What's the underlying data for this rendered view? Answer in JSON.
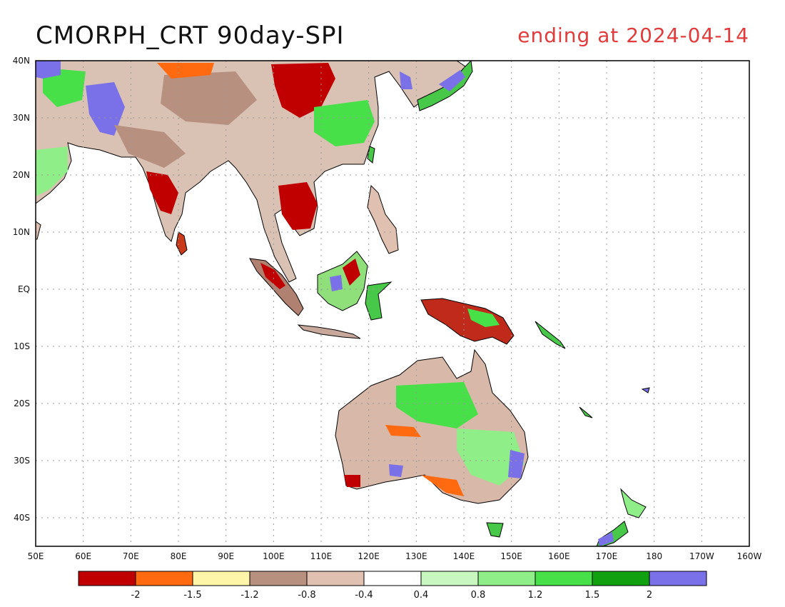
{
  "title": "CMORPH_CRT 90day-SPI",
  "subtitle": "ending at 2024-04-14",
  "colors": {
    "title": "#111111",
    "subtitle": "#e23b3b",
    "coast": "#000000",
    "grid": "#9a9a9a"
  },
  "map": {
    "lon_range": [
      50,
      200
    ],
    "lat_range": [
      -45,
      40
    ],
    "x_ticks": [
      "50E",
      "60E",
      "70E",
      "80E",
      "90E",
      "100E",
      "110E",
      "120E",
      "130E",
      "140E",
      "150E",
      "160E",
      "170E",
      "180",
      "170W",
      "160W"
    ],
    "y_ticks": [
      "40N",
      "30N",
      "20N",
      "10N",
      "EQ",
      "10S",
      "20S",
      "30S",
      "40S"
    ]
  },
  "colorbar": {
    "colors": [
      "#c00000",
      "#ff6a10",
      "#fff5a8",
      "#b89080",
      "#e0c0b0",
      "#ffffff",
      "#c8f8c0",
      "#90ee88",
      "#48e048",
      "#10a010",
      "#7a70e8"
    ],
    "labels": [
      "-2",
      "-1.5",
      "-1.2",
      "-0.8",
      "-0.4",
      "0.4",
      "0.8",
      "1.2",
      "1.5",
      "2"
    ]
  }
}
